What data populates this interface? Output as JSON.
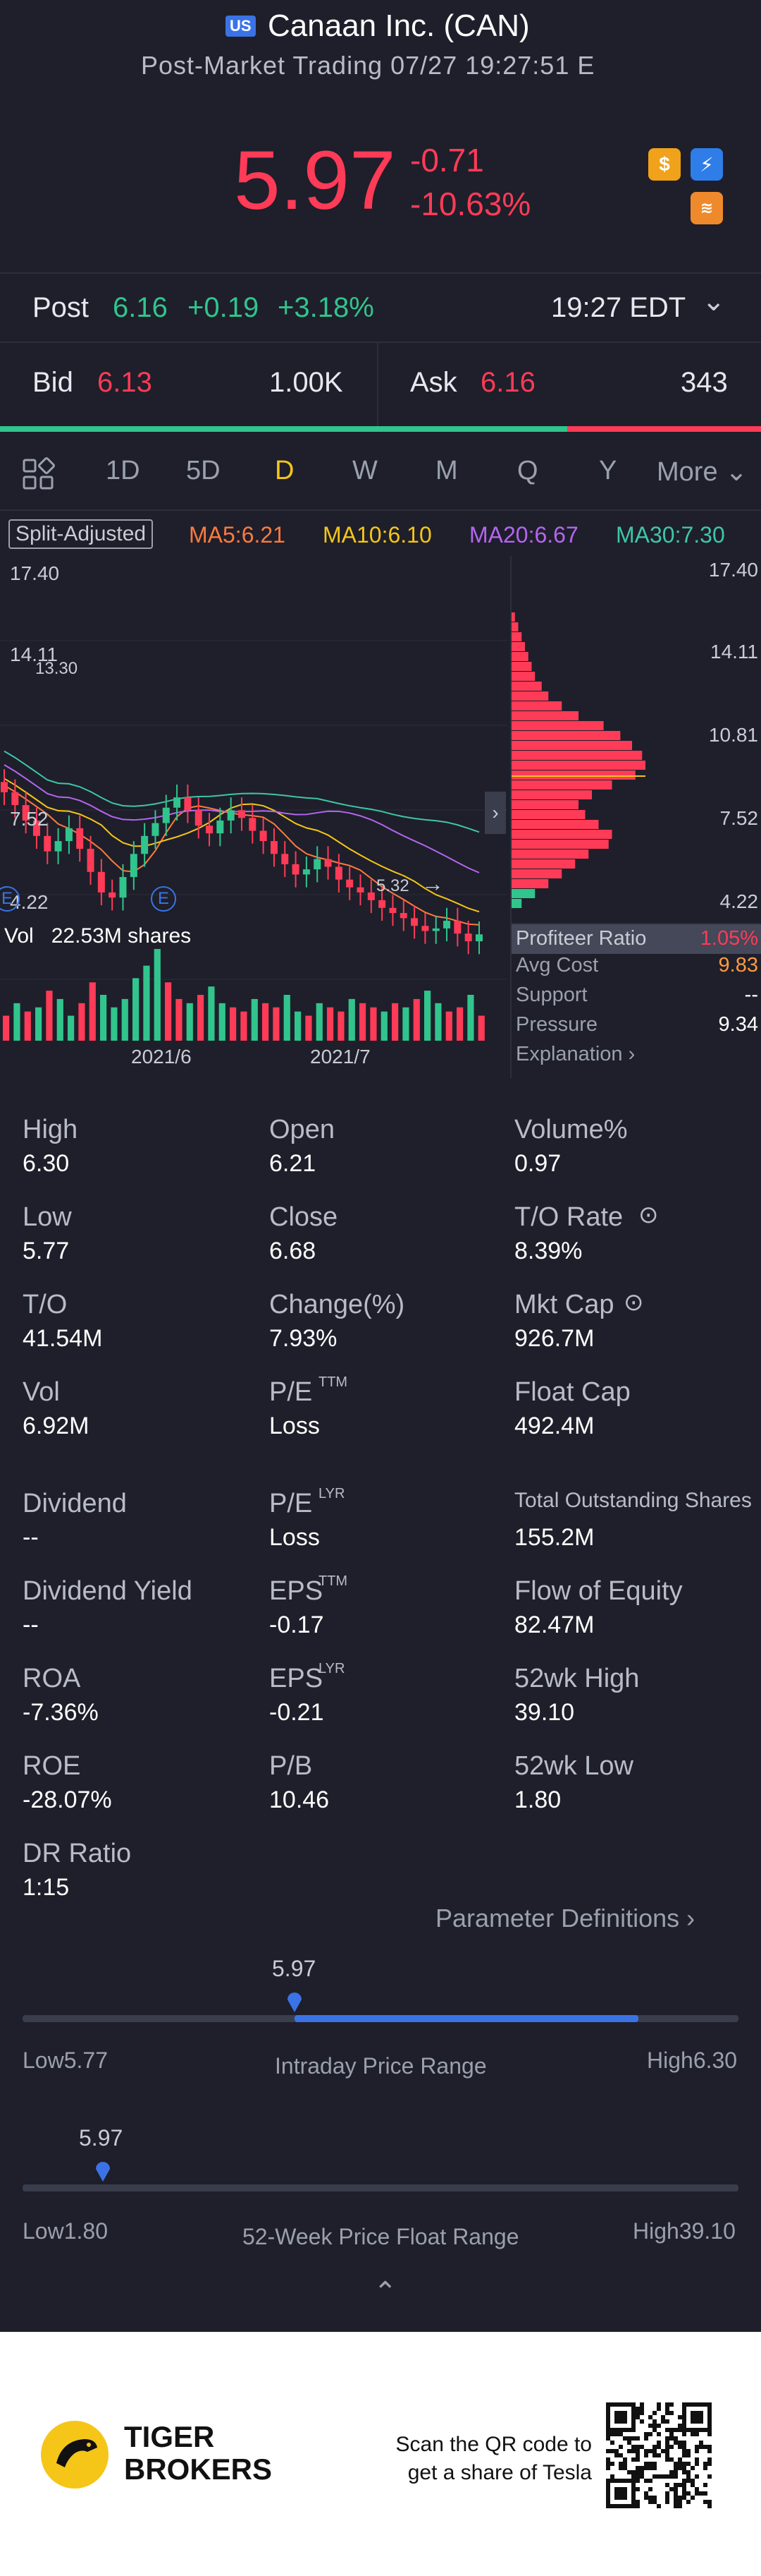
{
  "header": {
    "badge": "US",
    "title": "Canaan Inc. (CAN)",
    "subtitle": "Post-Market Trading 07/27 19:27:51 E",
    "price": "5.97",
    "change": "-0.71",
    "change_pct": "-10.63%",
    "icons": [
      "dollar-icon",
      "bolt-icon",
      "layers-icon"
    ],
    "icon_glyphs": {
      "dollar": "$",
      "bolt": "⚡",
      "layer": "≋"
    }
  },
  "post": {
    "label": "Post",
    "price": "6.16",
    "change": "+0.19",
    "change_pct": "+3.18%",
    "time": "19:27 EDT",
    "chevron": "⌄"
  },
  "bidask": {
    "bid_label": "Bid",
    "bid_price": "6.13",
    "bid_size": "1.00K",
    "ask_label": "Ask",
    "ask_price": "6.16",
    "ask_size": "343",
    "bid_share": 0.745
  },
  "tabs": [
    {
      "label": "1D"
    },
    {
      "label": "5D"
    },
    {
      "label": "D",
      "active": true
    },
    {
      "label": "W"
    },
    {
      "label": "M"
    },
    {
      "label": "Q"
    },
    {
      "label": "Y"
    },
    {
      "label": "More ⌄"
    }
  ],
  "ma": {
    "split": "Split-Adjusted",
    "ma5": "MA5:6.21",
    "ma10": "MA10:6.10",
    "ma20": "MA20:6.67",
    "ma30": "MA30:7.30",
    "colors": {
      "ma5": "#ff7a3d",
      "ma10": "#f5c518",
      "ma20": "#b565f0",
      "ma30": "#3ec6a8"
    }
  },
  "chart_data": {
    "type": "candlestick",
    "y_ticks": [
      "17.40",
      "14.11",
      "10.81",
      "7.52",
      "4.22"
    ],
    "annotations": [
      "14.11",
      "13.30",
      "5.32"
    ],
    "x_ticks": [
      "2021/6",
      "2021/7"
    ],
    "earnings_markers": [
      "E",
      "E"
    ],
    "vol_label": "Vol",
    "vol_value": "22.53M shares",
    "closes": [
      11.5,
      11.0,
      10.4,
      9.8,
      9.2,
      9.6,
      10.1,
      9.3,
      8.4,
      7.6,
      7.4,
      8.2,
      9.1,
      9.8,
      10.3,
      10.9,
      11.3,
      10.8,
      10.2,
      9.9,
      10.4,
      10.8,
      10.5,
      10.0,
      9.6,
      9.1,
      8.7,
      8.3,
      8.5,
      8.9,
      8.6,
      8.1,
      7.8,
      7.6,
      7.3,
      7.0,
      6.8,
      6.6,
      6.3,
      6.1,
      6.2,
      6.5,
      6.0,
      5.7,
      5.97
    ],
    "volumes": [
      6,
      9,
      7,
      8,
      12,
      10,
      6,
      9,
      14,
      11,
      8,
      10,
      15,
      18,
      22,
      14,
      10,
      9,
      11,
      13,
      9,
      8,
      7,
      10,
      9,
      8,
      11,
      7,
      6,
      9,
      8,
      7,
      10,
      9,
      8,
      7,
      9,
      8,
      10,
      12,
      9,
      7,
      8,
      11,
      6
    ],
    "vol_up": [
      false,
      true,
      false,
      true,
      false,
      true,
      true,
      false,
      false,
      true,
      true,
      true,
      true,
      true,
      true,
      false,
      false,
      true,
      false,
      true,
      true,
      false,
      false,
      true,
      false,
      false,
      true,
      true,
      false,
      true,
      false,
      false,
      true,
      false,
      false,
      true,
      false,
      true,
      false,
      true,
      true,
      false,
      false,
      true,
      false
    ]
  },
  "chips": {
    "ticks": [
      "17.40",
      "14.11",
      "10.81",
      "7.52",
      "4.22"
    ],
    "rows": [
      {
        "label": "Profiteer Ratio",
        "value": "1.05%",
        "color": "red"
      },
      {
        "label": "Avg Cost",
        "value": "9.83",
        "color": "orange"
      },
      {
        "label": "Support",
        "value": "--",
        "color": "white"
      },
      {
        "label": "Pressure",
        "value": "9.34",
        "color": "white"
      },
      {
        "label": "Explanation ›",
        "value": "",
        "color": "white"
      }
    ],
    "distribution": [
      2,
      4,
      6,
      8,
      10,
      12,
      14,
      18,
      22,
      30,
      40,
      55,
      65,
      72,
      78,
      80,
      74,
      60,
      48,
      40,
      44,
      52,
      60,
      58,
      46,
      38,
      30,
      22,
      14,
      6
    ]
  },
  "stats": [
    [
      {
        "label": "High",
        "value": "6.30"
      },
      {
        "label": "Open",
        "value": "6.21"
      },
      {
        "label": "Volume%",
        "value": "0.97"
      }
    ],
    [
      {
        "label": "Low",
        "value": "5.77"
      },
      {
        "label": "Close",
        "value": "6.68"
      },
      {
        "label": "T/O Rate",
        "value": "8.39%"
      }
    ],
    [
      {
        "label": "T/O",
        "value": "41.54M"
      },
      {
        "label": "Change(%)",
        "value": "7.93%"
      },
      {
        "label": "Mkt Cap",
        "value": "926.7M"
      }
    ],
    [
      {
        "label": "Vol",
        "value": "6.92M"
      },
      {
        "label": "P/E",
        "sup": "TTM",
        "value": "Loss"
      },
      {
        "label": "Float Cap",
        "value": "492.4M"
      }
    ],
    [
      {
        "label": "Dividend",
        "value": "--"
      },
      {
        "label": "P/E",
        "sup": "LYR",
        "value": "Loss"
      },
      {
        "label": "Total Outstanding Shares",
        "value": "155.2M"
      }
    ],
    [
      {
        "label": "Dividend Yield",
        "value": "--"
      },
      {
        "label": "EPS",
        "sup": "TTM",
        "value": "-0.17"
      },
      {
        "label": "Flow of Equity",
        "value": "82.47M"
      }
    ],
    [
      {
        "label": "ROA",
        "value": "-7.36%"
      },
      {
        "label": "EPS",
        "sup": "LYR",
        "value": "-0.21"
      },
      {
        "label": "52wk High",
        "value": "39.10"
      }
    ],
    [
      {
        "label": "ROE",
        "value": "-28.07%"
      },
      {
        "label": "P/B",
        "value": "10.46"
      },
      {
        "label": "52wk Low",
        "value": "1.80"
      }
    ],
    [
      {
        "label": "DR Ratio",
        "value": "1:15"
      }
    ]
  ],
  "param_link": "Parameter Definitions ›",
  "intraday": {
    "current": "5.97",
    "low_label": "Low5.77",
    "high_label": "High6.30",
    "title": "Intraday Price Range",
    "marker_fraction": 0.38,
    "fill_start": 0.38,
    "fill_end": 0.86
  },
  "week52": {
    "current": "5.97",
    "low_label": "Low1.80",
    "high_label": "High39.10",
    "title": "52-Week Price Float Range",
    "marker_fraction": 0.112
  },
  "collapse": "⌃",
  "footer": {
    "brand_line1": "TIGER",
    "brand_line2": "BROKERS",
    "scan_line1": "Scan the QR code to",
    "scan_line2": "get a share of Tesla"
  }
}
